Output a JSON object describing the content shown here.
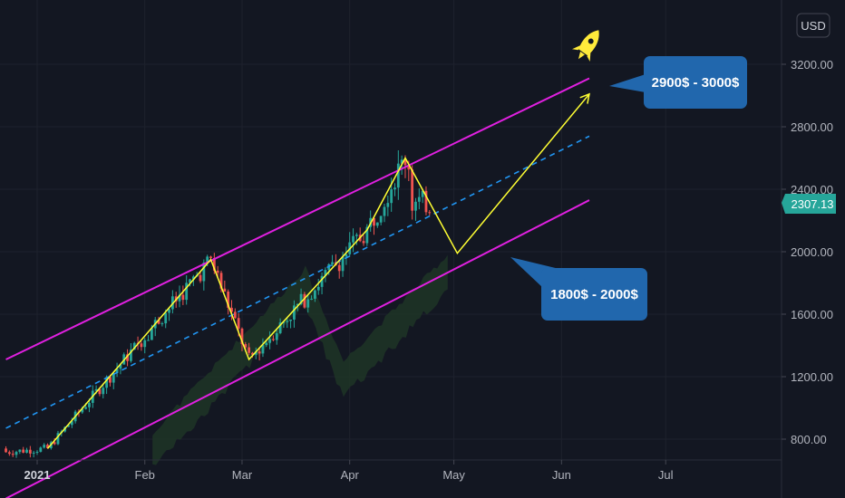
{
  "chart_data": {
    "type": "candlestick",
    "currency": "USD",
    "last_price": "2307.13",
    "y_ticks": [
      "3200.00",
      "2800.00",
      "2400.00",
      "2000.00",
      "1600.00",
      "1200.00",
      "800.00"
    ],
    "y_tick_values": [
      3200,
      2800,
      2400,
      2000,
      1600,
      1200,
      800
    ],
    "x_ticks": [
      "2021",
      "Feb",
      "Mar",
      "Apr",
      "May",
      "Jun",
      "Jul"
    ],
    "ylim": [
      700,
      3600
    ],
    "channel": {
      "upper": [
        [
          "2020-12-23",
          1310
        ],
        [
          "2021-06-09",
          3110
        ]
      ],
      "middle": [
        [
          "2020-12-23",
          870
        ],
        [
          "2021-06-09",
          2740
        ]
      ],
      "lower": [
        [
          "2020-12-23",
          420
        ],
        [
          "2021-06-09",
          2330
        ]
      ]
    },
    "zigzag": [
      [
        "2021-01-04",
        740
      ],
      [
        "2021-02-20",
        1950
      ],
      [
        "2021-03-03",
        1310
      ],
      [
        "2021-04-06",
        2140
      ],
      [
        "2021-04-17",
        2600
      ],
      [
        "2021-05-02",
        1990
      ],
      [
        "2021-06-09",
        3010
      ]
    ],
    "annotations": [
      {
        "label": "2900$ - 3000$",
        "target": [
          "2021-06-09",
          3010
        ],
        "color": "#2167ad"
      },
      {
        "label": "1800$ - 2000$",
        "target": [
          "2021-05-13",
          2000
        ],
        "color": "#2167ad"
      }
    ],
    "colors": {
      "background": "#131722",
      "up_candle": "#26a69a",
      "down_candle": "#ef5350",
      "channel": "#e020e0",
      "midline": "#2196f3",
      "zigzag": "#ffff33",
      "cloud": "#1f3526",
      "callout": "#2167ad",
      "rocket": "#ffeb3b"
    },
    "icon": "rocket-icon"
  }
}
